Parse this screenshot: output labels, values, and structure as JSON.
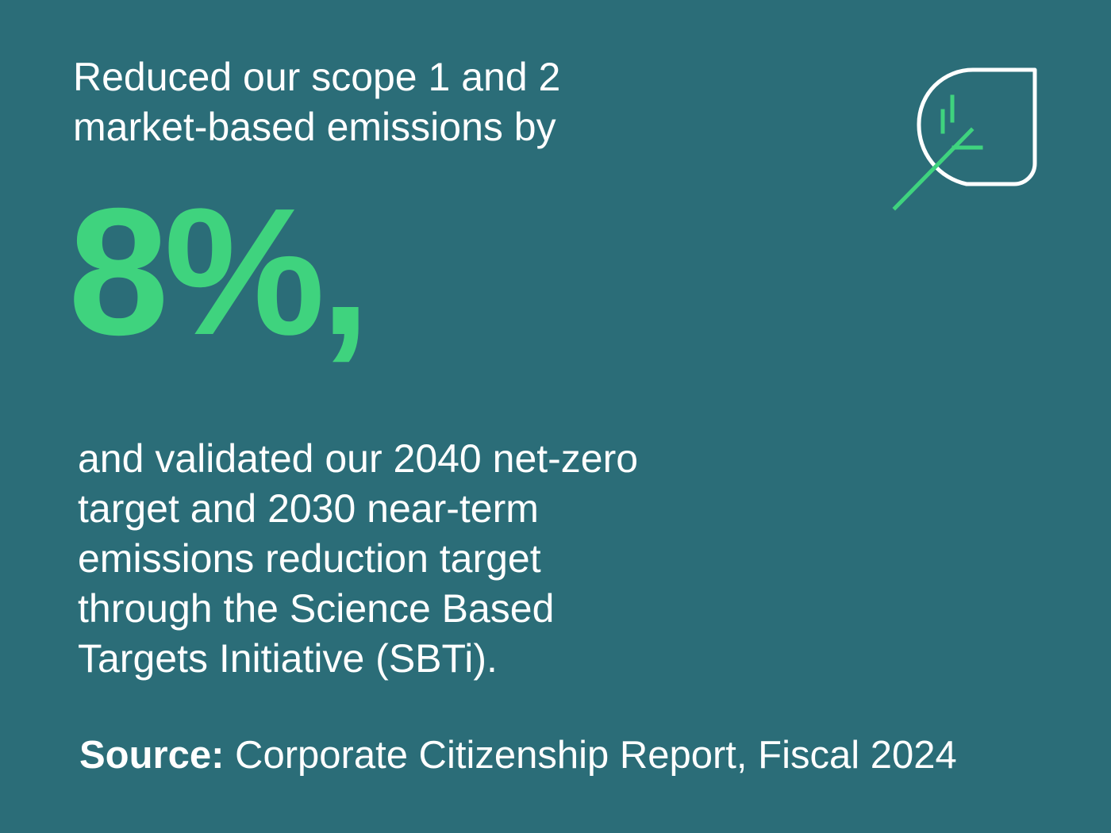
{
  "intro": {
    "line1": "Reduced our scope 1 and 2",
    "line2": "market-based emissions by"
  },
  "stat": {
    "value": "8%,",
    "color": "#3fd37e"
  },
  "body": {
    "line1": "and validated our 2040 net-zero",
    "line2": "target and 2030 near-term",
    "line3": "emissions reduction target",
    "line4": "through the Science Based",
    "line5": "Targets Initiative (SBTi)."
  },
  "source": {
    "label": "Source:",
    "text": " Corporate Citizenship Report, Fiscal 2024"
  },
  "icon": {
    "name": "leaf-icon",
    "stroke_color": "#ffffff",
    "accent_color": "#3fd37e"
  },
  "theme": {
    "background": "#2b6d78",
    "text": "#ffffff"
  }
}
